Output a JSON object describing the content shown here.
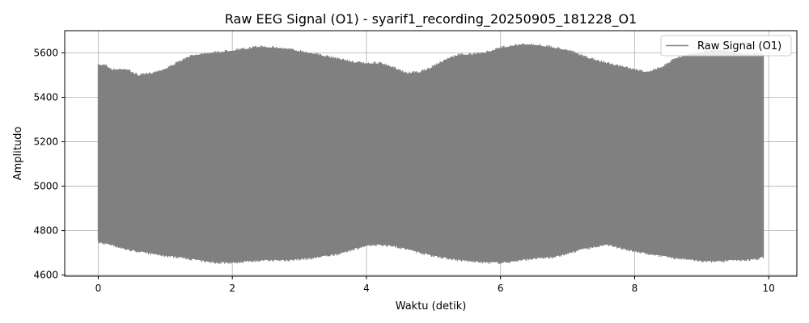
{
  "chart_data": {
    "type": "line",
    "title": "Raw EEG Signal (O1) - syarif1_recording_20250905_181228_O1",
    "xlabel": "Waktu (detik)",
    "ylabel": "Amplitudo",
    "xlim": [
      -0.5,
      10.42
    ],
    "ylim": [
      4595,
      5700
    ],
    "xticks": [
      0,
      2,
      4,
      6,
      8,
      10
    ],
    "yticks": [
      4600,
      4800,
      5000,
      5200,
      5400,
      5600
    ],
    "grid": true,
    "legend_position": "top-right",
    "series": [
      {
        "name": "Raw Signal (O1)",
        "color": "#808080",
        "x_range": [
          0,
          9.92
        ],
        "envelope_x": [
          0,
          0.1,
          0.2,
          0.4,
          0.6,
          0.8,
          1.0,
          1.2,
          1.4,
          1.6,
          1.8,
          2.0,
          2.2,
          2.4,
          2.6,
          2.8,
          3.0,
          3.2,
          3.4,
          3.6,
          3.8,
          4.0,
          4.2,
          4.4,
          4.6,
          4.8,
          5.0,
          5.2,
          5.4,
          5.6,
          5.8,
          6.0,
          6.2,
          6.4,
          6.6,
          6.8,
          7.0,
          7.2,
          7.4,
          7.6,
          7.8,
          8.0,
          8.2,
          8.4,
          8.6,
          8.8,
          9.0,
          9.2,
          9.4,
          9.6,
          9.8,
          9.92
        ],
        "envelope_upper": [
          5550,
          5555,
          5530,
          5535,
          5505,
          5515,
          5535,
          5565,
          5595,
          5605,
          5610,
          5618,
          5625,
          5635,
          5632,
          5625,
          5615,
          5605,
          5590,
          5580,
          5565,
          5560,
          5560,
          5540,
          5515,
          5520,
          5545,
          5580,
          5600,
          5600,
          5610,
          5630,
          5640,
          5645,
          5640,
          5630,
          5620,
          5595,
          5575,
          5560,
          5545,
          5530,
          5520,
          5540,
          5580,
          5600,
          5610,
          5620,
          5615,
          5600,
          5600,
          5600
        ],
        "envelope_lower": [
          4740,
          4735,
          4730,
          4710,
          4700,
          4690,
          4680,
          4675,
          4665,
          4655,
          4650,
          4650,
          4655,
          4660,
          4660,
          4660,
          4665,
          4670,
          4680,
          4690,
          4710,
          4725,
          4730,
          4725,
          4710,
          4695,
          4680,
          4670,
          4660,
          4655,
          4650,
          4650,
          4655,
          4665,
          4670,
          4675,
          4690,
          4710,
          4720,
          4730,
          4715,
          4700,
          4690,
          4680,
          4670,
          4665,
          4655,
          4655,
          4660,
          4660,
          4665,
          4675
        ]
      }
    ]
  }
}
